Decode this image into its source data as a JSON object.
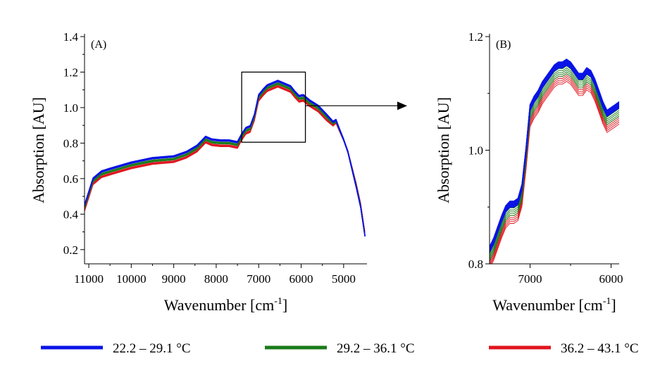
{
  "chart_data": [
    {
      "panel_label": "(A)",
      "type": "line",
      "xlabel_main": "Wavenumber [cm",
      "xlabel_sup": "-1",
      "xlabel_close": "]",
      "ylabel": "Absorption [AU]",
      "xlim": [
        11100,
        4450
      ],
      "ylim": [
        0.12,
        1.4
      ],
      "x_ticks": [
        11000,
        10000,
        9000,
        8000,
        7000,
        6000,
        5000
      ],
      "x_tick_labels": [
        "11000",
        "10000",
        "9000",
        "8000",
        "7000",
        "6000",
        "5000"
      ],
      "y_ticks": [
        0.2,
        0.4,
        0.6,
        0.8,
        1.0,
        1.2,
        1.4
      ],
      "y_tick_labels": [
        "0.2",
        "0.4",
        "0.6",
        "0.8",
        "1.0",
        "1.2",
        "1.4"
      ],
      "zoom_box": {
        "x": [
          7400,
          5900
        ],
        "y": [
          0.805,
          1.2
        ]
      },
      "series": [
        {
          "group": "red",
          "color": "#e0141e",
          "offset": -0.03,
          "tail_offset": 0.03,
          "x": [
            11100,
            10900,
            10700,
            10500,
            10000,
            9500,
            9000,
            8700,
            8450,
            8250,
            8100,
            7900,
            7700,
            7500,
            7400,
            7300,
            7200,
            7100,
            7000,
            6900,
            6800,
            6700,
            6550,
            6450,
            6350,
            6250,
            6150,
            6050,
            5950,
            5800,
            5600,
            5400,
            5250,
            5180,
            5100,
            5000,
            4900,
            4800,
            4700,
            4600,
            4550,
            4500
          ],
          "y": [
            0.45,
            0.6,
            0.64,
            0.655,
            0.69,
            0.715,
            0.725,
            0.75,
            0.785,
            0.835,
            0.82,
            0.815,
            0.815,
            0.805,
            0.85,
            0.885,
            0.895,
            0.96,
            1.07,
            1.1,
            1.125,
            1.135,
            1.15,
            1.14,
            1.13,
            1.12,
            1.09,
            1.065,
            1.07,
            1.04,
            1.01,
            0.96,
            0.92,
            0.93,
            0.88,
            0.82,
            0.75,
            0.65,
            0.55,
            0.44,
            0.36,
            0.28
          ]
        },
        {
          "group": "green",
          "color": "#1a7a1a",
          "offset": -0.015,
          "tail_offset": 0.015,
          "x": [
            11100,
            10900,
            10700,
            10500,
            10000,
            9500,
            9000,
            8700,
            8450,
            8250,
            8100,
            7900,
            7700,
            7500,
            7400,
            7300,
            7200,
            7100,
            7000,
            6900,
            6800,
            6700,
            6550,
            6450,
            6350,
            6250,
            6150,
            6050,
            5950,
            5800,
            5600,
            5400,
            5250,
            5180,
            5100,
            5000,
            4900,
            4800,
            4700,
            4600,
            4550,
            4500
          ],
          "y": [
            0.45,
            0.6,
            0.64,
            0.655,
            0.69,
            0.715,
            0.725,
            0.75,
            0.785,
            0.835,
            0.82,
            0.815,
            0.815,
            0.805,
            0.85,
            0.885,
            0.895,
            0.96,
            1.07,
            1.1,
            1.125,
            1.135,
            1.15,
            1.14,
            1.13,
            1.12,
            1.09,
            1.065,
            1.07,
            1.04,
            1.01,
            0.96,
            0.92,
            0.93,
            0.88,
            0.82,
            0.75,
            0.65,
            0.55,
            0.44,
            0.36,
            0.28
          ]
        },
        {
          "group": "blue",
          "color": "#0a14e6",
          "offset": 0,
          "tail_offset": 0,
          "x": [
            11100,
            10900,
            10700,
            10500,
            10000,
            9500,
            9000,
            8700,
            8450,
            8250,
            8100,
            7900,
            7700,
            7500,
            7400,
            7300,
            7200,
            7100,
            7000,
            6900,
            6800,
            6700,
            6550,
            6450,
            6350,
            6250,
            6150,
            6050,
            5950,
            5800,
            5600,
            5400,
            5250,
            5180,
            5100,
            5000,
            4900,
            4800,
            4700,
            4600,
            4550,
            4500
          ],
          "y": [
            0.45,
            0.6,
            0.64,
            0.655,
            0.69,
            0.715,
            0.725,
            0.75,
            0.785,
            0.835,
            0.82,
            0.815,
            0.815,
            0.805,
            0.85,
            0.885,
            0.895,
            0.96,
            1.07,
            1.1,
            1.125,
            1.135,
            1.15,
            1.14,
            1.13,
            1.12,
            1.09,
            1.065,
            1.07,
            1.04,
            1.01,
            0.96,
            0.92,
            0.93,
            0.88,
            0.82,
            0.75,
            0.65,
            0.55,
            0.44,
            0.36,
            0.28
          ]
        }
      ]
    },
    {
      "panel_label": "(B)",
      "type": "line",
      "xlabel_main": "Wavenumber [cm",
      "xlabel_sup": "-1",
      "xlabel_close": "]",
      "ylabel": "Absorption [AU]",
      "xlim": [
        7500,
        5900
      ],
      "ylim": [
        0.8,
        1.2
      ],
      "x_ticks": [
        7000,
        6000
      ],
      "x_tick_labels": [
        "7000",
        "6000"
      ],
      "y_ticks": [
        0.8,
        1.0,
        1.2
      ],
      "y_tick_labels": [
        "0.8",
        "1.0",
        "1.2"
      ],
      "series": [
        {
          "group": "red",
          "color": "#e0141e",
          "offset": -0.03,
          "x": [
            7500,
            7450,
            7400,
            7350,
            7300,
            7250,
            7200,
            7150,
            7100,
            7050,
            7000,
            6950,
            6900,
            6850,
            6800,
            6750,
            6700,
            6650,
            6600,
            6550,
            6500,
            6450,
            6400,
            6350,
            6300,
            6250,
            6200,
            6150,
            6100,
            6050,
            6000,
            5950,
            5900
          ],
          "y": [
            0.825,
            0.84,
            0.86,
            0.88,
            0.897,
            0.905,
            0.905,
            0.91,
            0.935,
            1.0,
            1.075,
            1.09,
            1.1,
            1.115,
            1.125,
            1.135,
            1.145,
            1.15,
            1.15,
            1.155,
            1.15,
            1.14,
            1.13,
            1.13,
            1.14,
            1.135,
            1.12,
            1.1,
            1.08,
            1.065,
            1.07,
            1.075,
            1.08
          ]
        },
        {
          "group": "green",
          "color": "#1a7a1a",
          "offset": -0.015,
          "x": [
            7500,
            7450,
            7400,
            7350,
            7300,
            7250,
            7200,
            7150,
            7100,
            7050,
            7000,
            6950,
            6900,
            6850,
            6800,
            6750,
            6700,
            6650,
            6600,
            6550,
            6500,
            6450,
            6400,
            6350,
            6300,
            6250,
            6200,
            6150,
            6100,
            6050,
            6000,
            5950,
            5900
          ],
          "y": [
            0.825,
            0.84,
            0.86,
            0.88,
            0.897,
            0.905,
            0.905,
            0.91,
            0.935,
            1.0,
            1.075,
            1.09,
            1.1,
            1.115,
            1.125,
            1.135,
            1.145,
            1.15,
            1.15,
            1.155,
            1.15,
            1.14,
            1.13,
            1.13,
            1.14,
            1.135,
            1.12,
            1.1,
            1.08,
            1.065,
            1.07,
            1.075,
            1.08
          ]
        },
        {
          "group": "blue",
          "color": "#0a14e6",
          "offset": 0,
          "x": [
            7500,
            7450,
            7400,
            7350,
            7300,
            7250,
            7200,
            7150,
            7100,
            7050,
            7000,
            6950,
            6900,
            6850,
            6800,
            6750,
            6700,
            6650,
            6600,
            6550,
            6500,
            6450,
            6400,
            6350,
            6300,
            6250,
            6200,
            6150,
            6100,
            6050,
            6000,
            5950,
            5900
          ],
          "y": [
            0.825,
            0.84,
            0.86,
            0.88,
            0.897,
            0.905,
            0.905,
            0.91,
            0.935,
            1.0,
            1.075,
            1.09,
            1.1,
            1.115,
            1.125,
            1.135,
            1.145,
            1.15,
            1.15,
            1.155,
            1.15,
            1.14,
            1.13,
            1.13,
            1.14,
            1.135,
            1.12,
            1.1,
            1.08,
            1.065,
            1.07,
            1.075,
            1.08
          ]
        }
      ]
    }
  ],
  "legend": {
    "placement": "bottom",
    "entries": [
      {
        "label": "22.2 – 29.1 °C",
        "color": "#0a14e6"
      },
      {
        "label": "29.2 – 36.1 °C",
        "color": "#1a7a1a"
      },
      {
        "label": "36.2 – 43.1 °C",
        "color": "#e0141e"
      }
    ]
  }
}
